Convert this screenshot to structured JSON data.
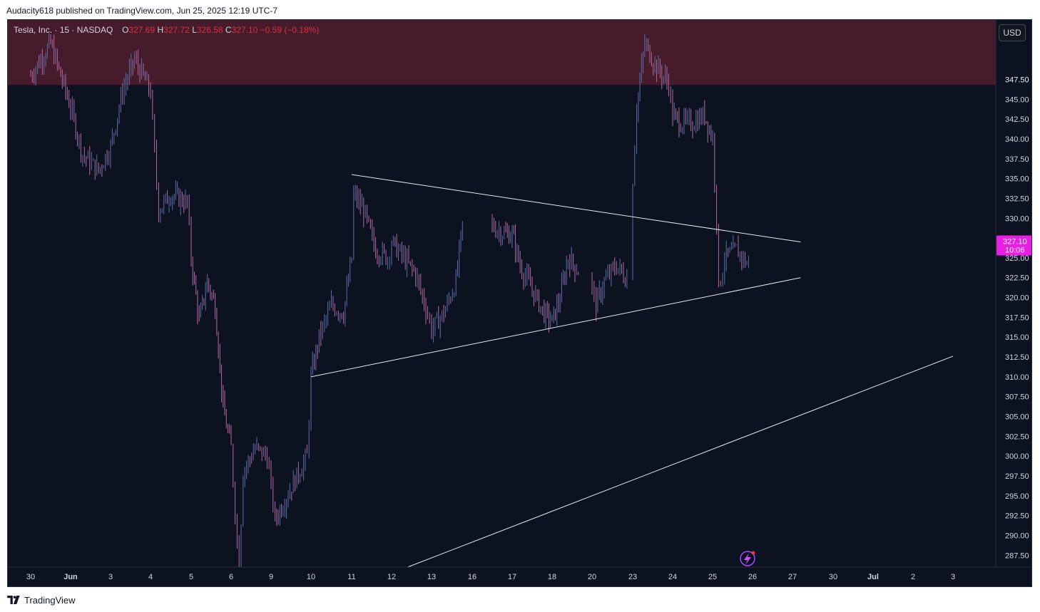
{
  "header": {
    "published_text": "Audacity618 published on TradingView.com, Jun 25, 2025 12:19 UTC-7"
  },
  "legend": {
    "symbol": "Tesla, Inc. · 15 · NASDAQ",
    "o_label": "O",
    "o_value": "327.69",
    "h_label": "H",
    "h_value": "327.72",
    "l_label": "L",
    "l_value": "326.58",
    "c_label": "C",
    "c_value": "327.10",
    "change": "−0.59 (−0.18%)"
  },
  "currency_button": "USD",
  "price_label": {
    "price": "327.10",
    "countdown": "10:06"
  },
  "footer": {
    "brand": "TradingView"
  },
  "colors": {
    "background": "#0c1220",
    "candle": "#5b6ea8",
    "candle_down": "#b26ba0",
    "resistance_zone": "#4a1c2c",
    "trendline": "#e8e8ee",
    "price_badge": "#e91ee5",
    "axis_text": "#d1d4dc"
  },
  "icons": [
    "tradingview-logo-icon",
    "lightning-icon"
  ],
  "chart_data": {
    "type": "candlestick",
    "symbol": "Tesla, Inc.",
    "timeframe": "15",
    "exchange": "NASDAQ",
    "currency": "USD",
    "ylim": [
      286,
      355
    ],
    "y_ticks": [
      "287.50",
      "290.00",
      "292.50",
      "295.00",
      "297.50",
      "300.00",
      "302.50",
      "305.00",
      "307.50",
      "310.00",
      "312.50",
      "315.00",
      "317.50",
      "320.00",
      "322.50",
      "325.00",
      "327.50",
      "330.00",
      "332.50",
      "335.00",
      "337.50",
      "340.00",
      "342.50",
      "345.00",
      "347.50"
    ],
    "x_ticks": [
      "30",
      "Jun",
      "3",
      "4",
      "5",
      "6",
      "9",
      "10",
      "11",
      "12",
      "13",
      "16",
      "17",
      "18",
      "20",
      "23",
      "24",
      "25",
      "26",
      "27",
      "30",
      "Jul",
      "2",
      "3"
    ],
    "last_price": 327.1,
    "resistance_zone": [
      346.8,
      355
    ],
    "price_path": [
      [
        "30",
        348
      ],
      [
        "30.5",
        352
      ],
      [
        "Jun",
        344
      ],
      [
        "Jun.3",
        338
      ],
      [
        "Jun.7",
        336
      ],
      [
        "3",
        339
      ],
      [
        "3.3",
        346
      ],
      [
        "3.6",
        350
      ],
      [
        "4",
        346
      ],
      [
        "4.1",
        338
      ],
      [
        "4.2",
        331
      ],
      [
        "4.5",
        333
      ],
      [
        "4.9",
        332
      ],
      [
        "5",
        325
      ],
      [
        "5.2",
        317
      ],
      [
        "5.4",
        322
      ],
      [
        "5.6",
        319
      ],
      [
        "5.8",
        306
      ],
      [
        "6",
        301
      ],
      [
        "6.1",
        293
      ],
      [
        "6.2",
        286
      ],
      [
        "6.3",
        298
      ],
      [
        "6.6",
        301
      ],
      [
        "6.9",
        300
      ],
      [
        "9",
        296
      ],
      [
        "9.1",
        292
      ],
      [
        "9.3",
        294
      ],
      [
        "9.6",
        297
      ],
      [
        "9.9",
        300
      ],
      [
        "10",
        310
      ],
      [
        "10.2",
        315
      ],
      [
        "10.5",
        319
      ],
      [
        "10.8",
        318
      ],
      [
        "11",
        325
      ],
      [
        "11.05",
        333
      ],
      [
        "11.3",
        331
      ],
      [
        "11.6",
        326
      ],
      [
        "11.9",
        325
      ],
      [
        "12",
        327
      ],
      [
        "12.3",
        325
      ],
      [
        "12.6",
        323
      ],
      [
        "12.9",
        318
      ],
      [
        "13",
        316
      ],
      [
        "13.3",
        318
      ],
      [
        "13.6",
        322
      ],
      [
        "13.8",
        331
      ],
      [
        "15.9",
        327
      ],
      [
        "16.5",
        329
      ],
      [
        "16.8",
        328
      ],
      [
        "17",
        328
      ],
      [
        "17.2",
        324
      ],
      [
        "17.5",
        321
      ],
      [
        "17.8",
        318
      ],
      [
        "18",
        317
      ],
      [
        "18.2",
        320
      ],
      [
        "18.4",
        325
      ],
      [
        "18.7",
        323
      ],
      [
        "19",
        325
      ],
      [
        "20",
        321
      ],
      [
        "20.1",
        319
      ],
      [
        "20.3",
        322
      ],
      [
        "20.6",
        324
      ],
      [
        "20.9",
        322
      ],
      [
        "22.9",
        323
      ],
      [
        "23",
        335
      ],
      [
        "23.1",
        344
      ],
      [
        "23.3",
        352
      ],
      [
        "23.6",
        349
      ],
      [
        "23.9",
        347
      ],
      [
        "24",
        343
      ],
      [
        "24.2",
        342
      ],
      [
        "24.5",
        342
      ],
      [
        "24.8",
        343
      ],
      [
        "25",
        340
      ],
      [
        "25.1",
        330
      ],
      [
        "25.15",
        321
      ],
      [
        "25.3",
        325
      ],
      [
        "25.6",
        326
      ],
      [
        "25.9",
        324
      ],
      [
        "25.95",
        327.1
      ]
    ],
    "trendlines": [
      {
        "name": "descending-resistance",
        "from": [
          "11",
          335.5
        ],
        "to": [
          "27.2",
          327
        ]
      },
      {
        "name": "ascending-support",
        "from": [
          "10",
          310
        ],
        "to": [
          "27.2",
          322.5
        ]
      },
      {
        "name": "long-term-support",
        "from": [
          "12.4",
          286
        ],
        "to": [
          "Jul.3.5",
          312.6
        ]
      }
    ]
  }
}
